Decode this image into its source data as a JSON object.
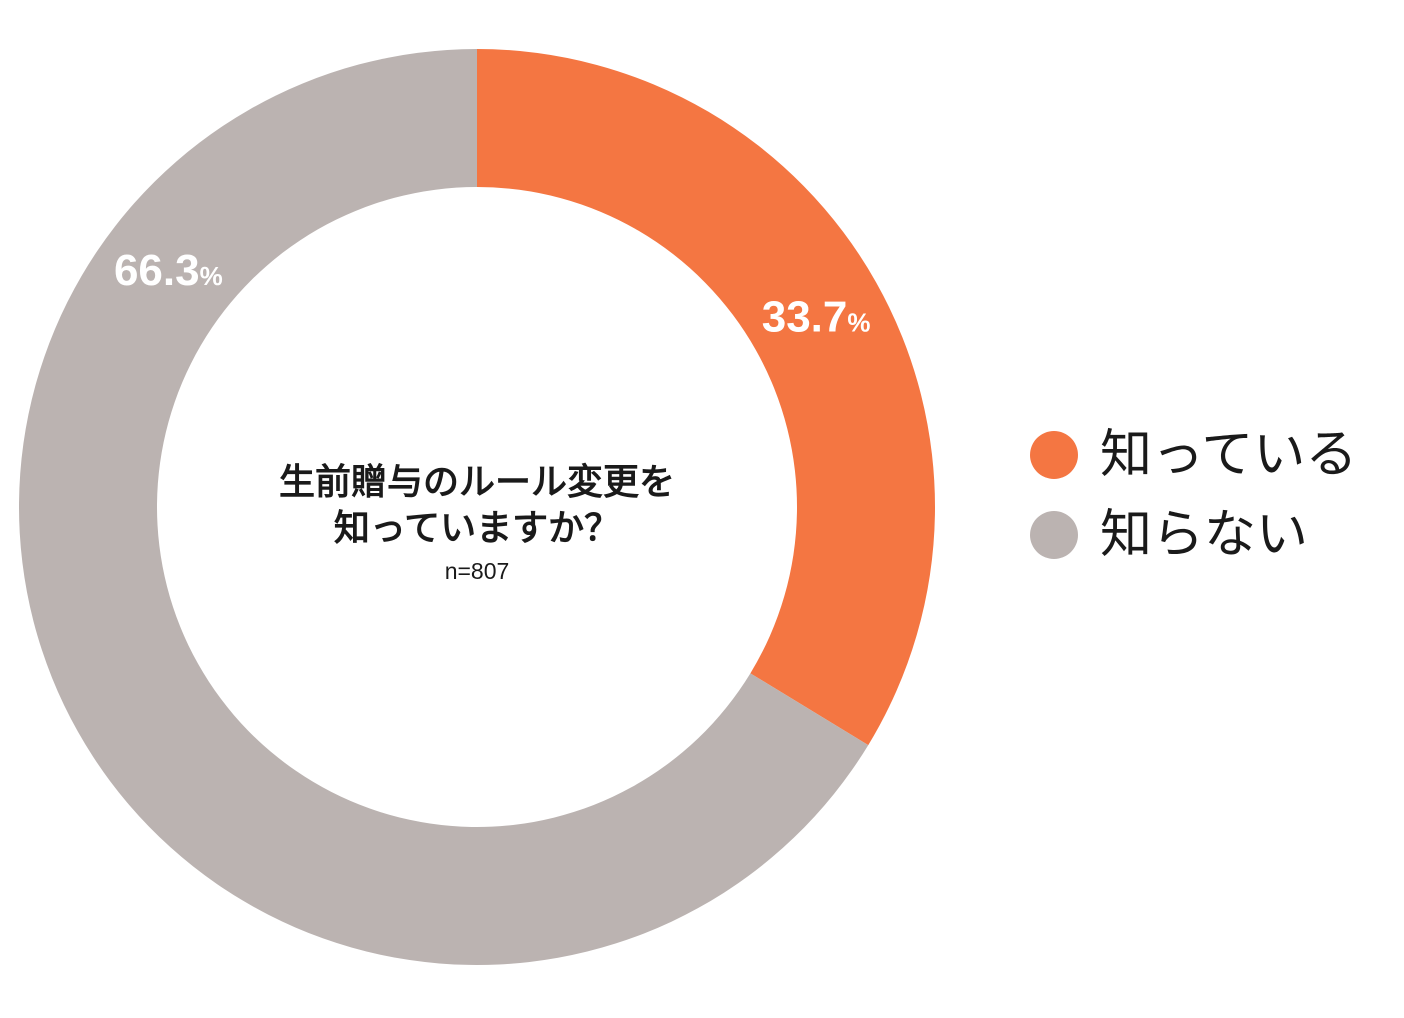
{
  "chart_data": {
    "type": "pie",
    "variant": "donut",
    "title": "生前贈与のルール変更を知っていますか？",
    "title_lines": [
      "生前贈与のルール変更を",
      "知っていますか？"
    ],
    "subtitle": "n=807",
    "legend_position": "right",
    "slices": [
      {
        "name": "知っている",
        "value": 33.7,
        "label": "33.7",
        "unit": "%",
        "color": "#F47642"
      },
      {
        "name": "知らない",
        "value": 66.3,
        "label": "66.3",
        "unit": "%",
        "color": "#BBB3B1"
      }
    ]
  }
}
